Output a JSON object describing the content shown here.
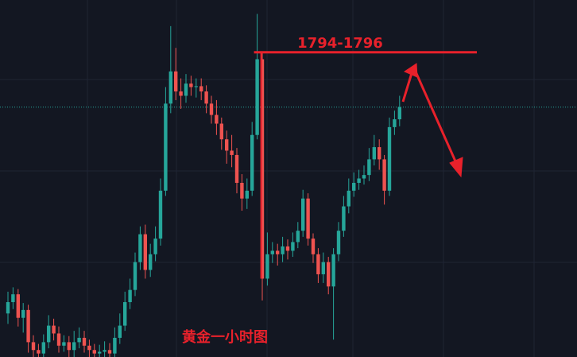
{
  "chart_data": {
    "type": "candlestick",
    "title": "黄金一小时图",
    "annotation": {
      "label": "1794-1796",
      "value": 1795
    },
    "ylim": [
      1760,
      1801
    ],
    "up_color": "#26a69a",
    "down_color": "#ef5350",
    "open": [
      1765.0,
      1766.3,
      1767.2,
      1764.5,
      1765.4,
      1761.7,
      1760.8,
      1760.4,
      1761.7,
      1763.6,
      1762.7,
      1761.3,
      1761.7,
      1760.8,
      1761.7,
      1762.2,
      1761.3,
      1760.8,
      1760.4,
      1760.6,
      1760.8,
      1760.4,
      1762.2,
      1763.6,
      1766.3,
      1767.7,
      1770.9,
      1774.1,
      1770.0,
      1771.8,
      1773.6,
      1779.1,
      1789.1,
      1792.8,
      1790.5,
      1790.0,
      1791.4,
      1791.0,
      1791.1,
      1790.5,
      1789.1,
      1787.8,
      1786.8,
      1785.0,
      1783.7,
      1783.2,
      1780.0,
      1778.2,
      1779.1,
      1785.5,
      1794.2,
      1769.0,
      1771.8,
      1772.2,
      1771.8,
      1772.7,
      1772.2,
      1773.2,
      1774.5,
      1778.2,
      1773.6,
      1771.8,
      1769.5,
      1770.9,
      1768.1,
      1771.8,
      1774.5,
      1777.3,
      1779.1,
      1780.0,
      1780.5,
      1780.9,
      1782.7,
      1784.1,
      1782.7,
      1779.1,
      1786.4,
      1787.3
    ],
    "high": [
      1767.5,
      1768.0,
      1767.8,
      1766.2,
      1766.0,
      1762.5,
      1761.5,
      1762.6,
      1764.8,
      1764.4,
      1763.5,
      1762.5,
      1762.4,
      1763.0,
      1763.4,
      1763.0,
      1762.0,
      1761.5,
      1761.4,
      1761.8,
      1761.6,
      1763.4,
      1765.0,
      1767.5,
      1769.0,
      1772.0,
      1775.0,
      1775.2,
      1773.0,
      1775.0,
      1780.5,
      1791.0,
      1798.0,
      1795.5,
      1792.0,
      1792.5,
      1792.3,
      1792.0,
      1792.0,
      1791.2,
      1790.0,
      1789.5,
      1787.5,
      1786.0,
      1785.5,
      1784.0,
      1781.0,
      1780.5,
      1787.0,
      1799.4,
      1795.0,
      1774.3,
      1773.2,
      1773.0,
      1773.8,
      1773.5,
      1774.3,
      1775.5,
      1779.2,
      1778.8,
      1774.2,
      1772.5,
      1772.0,
      1771.5,
      1772.5,
      1775.5,
      1778.5,
      1780.5,
      1781.2,
      1781.5,
      1782.0,
      1784.0,
      1785.5,
      1785.0,
      1783.2,
      1787.5,
      1788.3,
      1790.0
    ],
    "low": [
      1763.8,
      1765.5,
      1763.5,
      1762.8,
      1760.5,
      1759.8,
      1759.5,
      1759.8,
      1761.0,
      1761.9,
      1760.5,
      1760.6,
      1759.9,
      1760.0,
      1761.0,
      1760.5,
      1760.0,
      1759.6,
      1759.6,
      1759.8,
      1759.5,
      1759.8,
      1761.5,
      1763.0,
      1765.5,
      1767.0,
      1770.0,
      1769.0,
      1769.2,
      1771.0,
      1772.8,
      1778.5,
      1788.0,
      1789.5,
      1788.5,
      1789.2,
      1790.0,
      1789.8,
      1789.5,
      1788.0,
      1786.8,
      1785.5,
      1783.8,
      1782.2,
      1781.8,
      1778.8,
      1776.8,
      1777.0,
      1778.5,
      1785.0,
      1766.5,
      1768.2,
      1770.8,
      1770.5,
      1770.9,
      1771.2,
      1771.5,
      1772.5,
      1773.8,
      1772.8,
      1770.8,
      1768.5,
      1768.5,
      1767.2,
      1762.0,
      1771.0,
      1773.8,
      1776.5,
      1778.4,
      1779.2,
      1779.8,
      1780.2,
      1782.0,
      1781.5,
      1777.5,
      1778.5,
      1785.5,
      1786.5
    ],
    "close": [
      1766.3,
      1767.2,
      1764.5,
      1765.4,
      1761.7,
      1760.8,
      1760.4,
      1761.7,
      1763.6,
      1762.7,
      1761.3,
      1761.7,
      1760.8,
      1761.7,
      1762.2,
      1761.3,
      1760.8,
      1760.4,
      1760.6,
      1760.8,
      1760.4,
      1762.2,
      1763.6,
      1766.3,
      1767.7,
      1770.9,
      1774.1,
      1770.0,
      1771.8,
      1773.6,
      1779.1,
      1789.1,
      1792.8,
      1790.5,
      1790.0,
      1791.4,
      1791.0,
      1791.1,
      1790.5,
      1789.1,
      1787.8,
      1786.8,
      1785.0,
      1783.7,
      1783.2,
      1780.0,
      1778.2,
      1779.1,
      1785.5,
      1794.2,
      1769.0,
      1771.8,
      1772.2,
      1771.8,
      1772.7,
      1772.2,
      1773.2,
      1774.5,
      1778.2,
      1773.6,
      1771.8,
      1769.5,
      1770.9,
      1768.1,
      1771.8,
      1774.5,
      1777.3,
      1779.1,
      1780.0,
      1780.5,
      1780.9,
      1782.7,
      1784.1,
      1782.7,
      1779.1,
      1786.4,
      1787.3,
      1788.7
    ]
  }
}
